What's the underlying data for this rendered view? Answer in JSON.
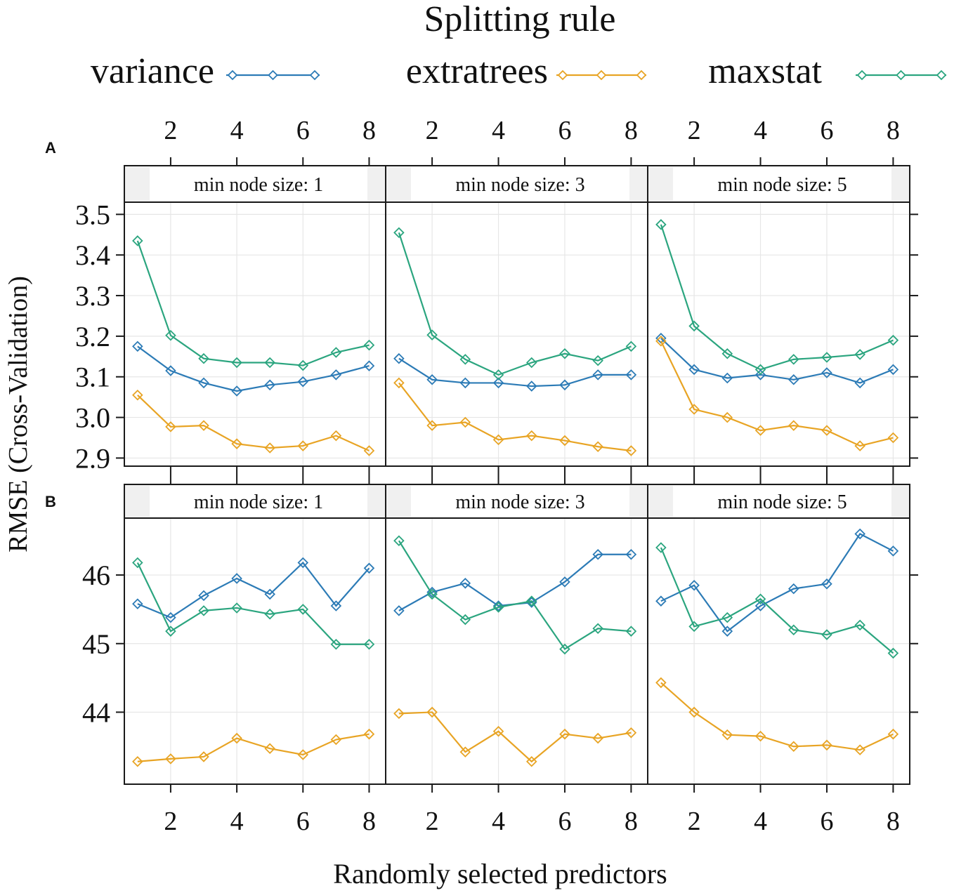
{
  "legend": {
    "title": "Splitting rule",
    "entries": [
      {
        "label": "variance",
        "color": "#2c7bb6"
      },
      {
        "label": "extratrees",
        "color": "#e8a424"
      },
      {
        "label": "maxstat",
        "color": "#2ba57f"
      }
    ]
  },
  "axes": {
    "xlabel": "Randomly selected predictors",
    "ylabel": "RMSE (Cross-Validation)",
    "xticks": [
      2,
      4,
      6,
      8
    ],
    "xlim": [
      0.6,
      8.5
    ]
  },
  "chart_data": [
    {
      "type": "line",
      "panel_label": "A",
      "ylim": [
        2.88,
        3.53
      ],
      "yticks": [
        2.9,
        3.0,
        3.1,
        3.2,
        3.3,
        3.4,
        3.5
      ],
      "ytick_labels": [
        "2.9",
        "3.0",
        "3.1",
        "3.2",
        "3.3",
        "3.4",
        "3.5"
      ],
      "x": [
        1,
        2,
        3,
        4,
        5,
        6,
        7,
        8
      ],
      "facets": [
        {
          "strip": "min node size: 1",
          "series": [
            {
              "name": "variance",
              "values": [
                3.175,
                3.115,
                3.085,
                3.065,
                3.08,
                3.088,
                3.105,
                3.127
              ]
            },
            {
              "name": "extratrees",
              "values": [
                3.055,
                2.977,
                2.98,
                2.935,
                2.925,
                2.93,
                2.955,
                2.918
              ]
            },
            {
              "name": "maxstat",
              "values": [
                3.435,
                3.202,
                3.145,
                3.135,
                3.135,
                3.128,
                3.16,
                3.178
              ]
            }
          ]
        },
        {
          "strip": "min node size: 3",
          "series": [
            {
              "name": "variance",
              "values": [
                3.145,
                3.093,
                3.085,
                3.085,
                3.077,
                3.08,
                3.105,
                3.105
              ]
            },
            {
              "name": "extratrees",
              "values": [
                3.085,
                2.98,
                2.988,
                2.945,
                2.955,
                2.943,
                2.928,
                2.918
              ]
            },
            {
              "name": "maxstat",
              "values": [
                3.455,
                3.203,
                3.143,
                3.105,
                3.135,
                3.157,
                3.14,
                3.175
              ]
            }
          ]
        },
        {
          "strip": "min node size: 5",
          "series": [
            {
              "name": "variance",
              "values": [
                3.195,
                3.118,
                3.097,
                3.105,
                3.093,
                3.11,
                3.085,
                3.118
              ]
            },
            {
              "name": "extratrees",
              "values": [
                3.188,
                3.02,
                3.0,
                2.968,
                2.98,
                2.968,
                2.93,
                2.95
              ]
            },
            {
              "name": "maxstat",
              "values": [
                3.475,
                3.225,
                3.157,
                3.118,
                3.143,
                3.148,
                3.155,
                3.19
              ]
            }
          ]
        }
      ]
    },
    {
      "type": "line",
      "panel_label": "B",
      "ylim": [
        42.95,
        46.83
      ],
      "yticks": [
        44,
        45,
        46
      ],
      "ytick_labels": [
        "44",
        "45",
        "46"
      ],
      "x": [
        1,
        2,
        3,
        4,
        5,
        6,
        7,
        8
      ],
      "facets": [
        {
          "strip": "min node size: 1",
          "series": [
            {
              "name": "variance",
              "values": [
                45.58,
                45.38,
                45.7,
                45.95,
                45.72,
                46.18,
                45.55,
                46.1
              ]
            },
            {
              "name": "extratrees",
              "values": [
                43.28,
                43.32,
                43.35,
                43.62,
                43.47,
                43.38,
                43.6,
                43.68
              ]
            },
            {
              "name": "maxstat",
              "values": [
                46.18,
                45.18,
                45.48,
                45.52,
                45.43,
                45.5,
                44.99,
                44.99
              ]
            }
          ]
        },
        {
          "strip": "min node size: 3",
          "series": [
            {
              "name": "variance",
              "values": [
                45.48,
                45.75,
                45.88,
                45.55,
                45.6,
                45.9,
                46.3,
                46.3
              ]
            },
            {
              "name": "extratrees",
              "values": [
                43.98,
                44.0,
                43.42,
                43.72,
                43.28,
                43.68,
                43.62,
                43.7
              ]
            },
            {
              "name": "maxstat",
              "values": [
                46.5,
                45.72,
                45.35,
                45.53,
                45.62,
                44.92,
                45.22,
                45.18
              ]
            }
          ]
        },
        {
          "strip": "min node size: 5",
          "series": [
            {
              "name": "variance",
              "values": [
                45.62,
                45.85,
                45.18,
                45.55,
                45.8,
                45.87,
                46.6,
                46.35
              ]
            },
            {
              "name": "extratrees",
              "values": [
                44.43,
                44.0,
                43.67,
                43.65,
                43.5,
                43.52,
                43.45,
                43.68
              ]
            },
            {
              "name": "maxstat",
              "values": [
                46.4,
                45.25,
                45.38,
                45.65,
                45.2,
                45.13,
                45.27,
                44.86
              ]
            }
          ]
        }
      ]
    }
  ]
}
